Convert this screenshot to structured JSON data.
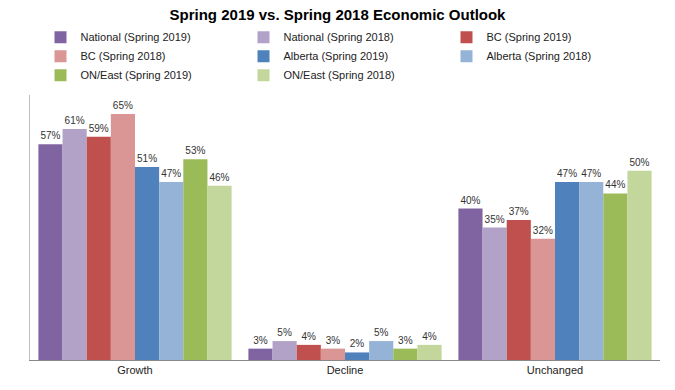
{
  "chart_data": {
    "type": "bar",
    "title": "Spring 2019 vs. Spring 2018 Economic Outlook",
    "categories": [
      "Growth",
      "Decline",
      "Unchanged"
    ],
    "series": [
      {
        "name": "National (Spring 2019)",
        "color": "#8064A2",
        "values": [
          57,
          3,
          40
        ],
        "value_labels": [
          "57%",
          "3%",
          "40%"
        ]
      },
      {
        "name": "National (Spring 2018)",
        "color": "#B3A2C7",
        "values": [
          61,
          5,
          35
        ],
        "value_labels": [
          "61%",
          "5%",
          "35%"
        ]
      },
      {
        "name": "BC (Spring 2019)",
        "color": "#C0504D",
        "values": [
          59,
          4,
          37
        ],
        "value_labels": [
          "59%",
          "4%",
          "37%"
        ]
      },
      {
        "name": "BC (Spring 2018)",
        "color": "#D99694",
        "values": [
          65,
          3,
          32
        ],
        "value_labels": [
          "65%",
          "3%",
          "32%"
        ]
      },
      {
        "name": "Alberta (Spring 2019)",
        "color": "#4F81BD",
        "values": [
          51,
          2,
          47
        ],
        "value_labels": [
          "51%",
          "2%",
          "47%"
        ]
      },
      {
        "name": "Alberta (Spring 2018)",
        "color": "#95B3D7",
        "values": [
          47,
          5,
          47
        ],
        "value_labels": [
          "47%",
          "5%",
          "47%"
        ]
      },
      {
        "name": "ON/East (Spring 2019)",
        "color": "#9BBB59",
        "values": [
          53,
          3,
          44
        ],
        "value_labels": [
          "53%",
          "3%",
          "44%"
        ]
      },
      {
        "name": "ON/East (Spring 2018)",
        "color": "#C3D69B",
        "values": [
          46,
          4,
          50
        ],
        "value_labels": [
          "46%",
          "4%",
          "50%"
        ]
      }
    ],
    "ylim": [
      0,
      70
    ],
    "grid": false,
    "legend": "top",
    "data_labels": true,
    "tick_labels": "x"
  }
}
